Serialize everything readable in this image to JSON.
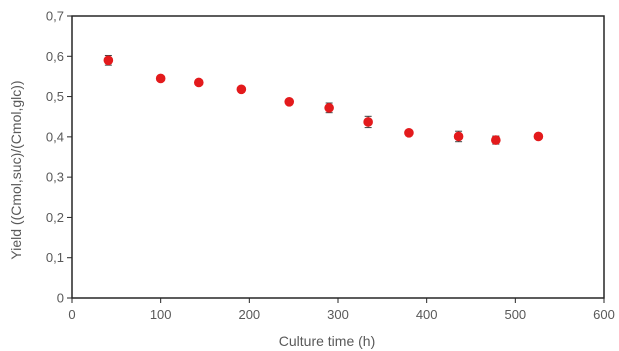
{
  "chart_data": {
    "type": "scatter",
    "title": "",
    "xlabel": "Culture time (h)",
    "ylabel": "Yield ((Cmol,suc)/(Cmol,glc))",
    "xlim": [
      0,
      600
    ],
    "ylim": [
      0,
      0.7
    ],
    "x_ticks": [
      0,
      100,
      200,
      300,
      400,
      500,
      600
    ],
    "y_ticks": [
      0,
      0.1,
      0.2,
      0.3,
      0.4,
      0.5,
      0.6,
      0.7
    ],
    "x_tick_labels": [
      "0",
      "100",
      "200",
      "300",
      "400",
      "500",
      "600"
    ],
    "y_tick_labels": [
      "0",
      "0,1",
      "0,2",
      "0,3",
      "0,4",
      "0,5",
      "0,6",
      "0,7"
    ],
    "grid": false,
    "legend": "none",
    "marker_color": "#e31a1c",
    "series": [
      {
        "x": [
          41,
          100,
          143,
          191,
          245,
          290,
          334,
          380,
          436,
          478,
          526
        ],
        "y": [
          0.59,
          0.545,
          0.535,
          0.518,
          0.487,
          0.472,
          0.437,
          0.41,
          0.401,
          0.392,
          0.401
        ],
        "error": [
          0.012,
          0.0,
          0.0,
          0.0,
          0.0,
          0.012,
          0.014,
          0.0,
          0.013,
          0.01,
          0.0
        ]
      }
    ]
  }
}
